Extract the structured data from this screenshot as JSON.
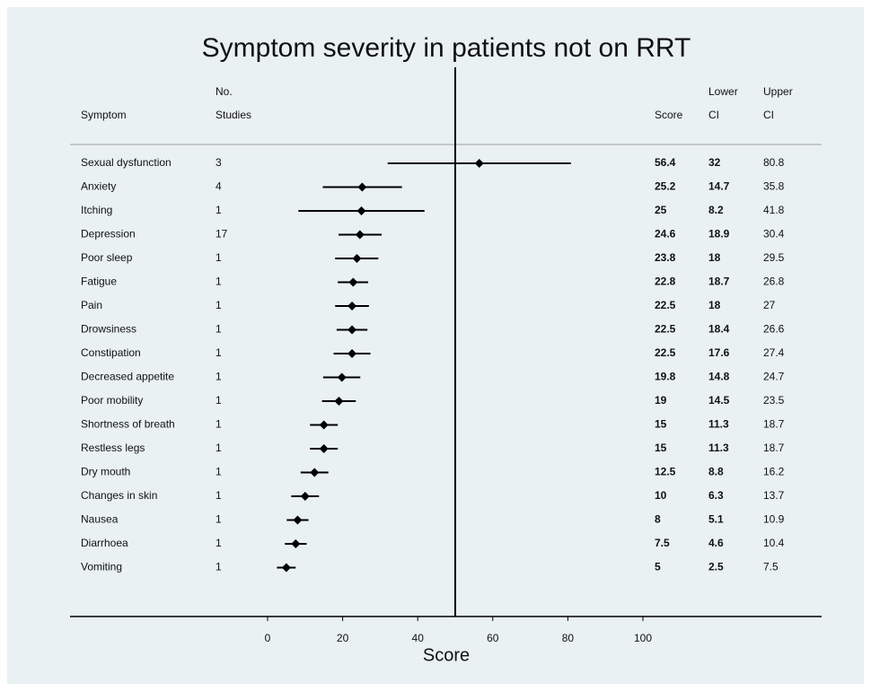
{
  "chart_data": {
    "type": "forest",
    "title": "Symptom severity in patients not on RRT",
    "x_label": "Score",
    "column_headers": [
      [
        "Symptom"
      ],
      [
        "No.",
        "Studies"
      ],
      [
        "Score"
      ],
      [
        "Lower",
        "CI"
      ],
      [
        "Upper",
        "CI"
      ]
    ],
    "categories": [
      "Sexual dysfunction",
      "Anxiety",
      "Itching",
      "Depression",
      "Poor sleep",
      "Fatigue",
      "Pain",
      "Drowsiness",
      "Constipation",
      "Decreased appetite",
      "Poor mobility",
      "Shortness of breath",
      "Restless legs",
      "Dry mouth",
      "Changes in skin",
      "Nausea",
      "Diarrhoea",
      "Vomiting"
    ],
    "studies": [
      3,
      4,
      1,
      17,
      1,
      1,
      1,
      1,
      1,
      1,
      1,
      1,
      1,
      1,
      1,
      1,
      1,
      1
    ],
    "values": [
      56.4,
      25.2,
      25,
      24.6,
      23.8,
      22.8,
      22.5,
      22.5,
      22.5,
      19.8,
      19,
      15,
      15,
      12.5,
      10,
      8,
      7.5,
      5
    ],
    "lower": [
      32,
      14.7,
      8.2,
      18.9,
      18,
      18.7,
      18,
      18.4,
      17.6,
      14.8,
      14.5,
      11.3,
      11.3,
      8.8,
      6.3,
      5.1,
      4.6,
      2.5
    ],
    "upper": [
      80.8,
      35.8,
      41.8,
      30.4,
      29.5,
      26.8,
      27,
      26.6,
      27.4,
      24.7,
      23.5,
      18.7,
      18.7,
      16.2,
      13.7,
      10.9,
      10.4,
      7.5
    ],
    "reference_line": 50,
    "xlim": [
      0,
      100
    ],
    "xticks": [
      0,
      20,
      40,
      60,
      80,
      100
    ],
    "color": "#000000"
  }
}
